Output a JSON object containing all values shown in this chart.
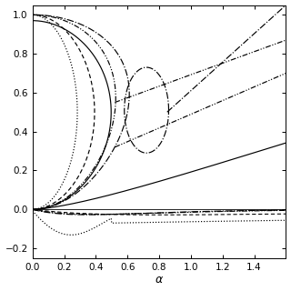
{
  "title": "",
  "xlabel": "α",
  "ylabel": "",
  "xlim": [
    0.0,
    1.6
  ],
  "ylim": [
    -0.25,
    1.05
  ],
  "xticks": [
    0.0,
    0.2,
    0.4,
    0.6,
    0.8,
    1.0,
    1.2,
    1.4
  ],
  "yticks": [
    -0.2,
    0.0,
    0.2,
    0.4,
    0.6,
    0.8,
    1.0
  ],
  "bg_color": "#f0f0f0",
  "line_color": "#000000",
  "figsize": [
    3.2,
    3.2
  ],
  "dpi": 100
}
